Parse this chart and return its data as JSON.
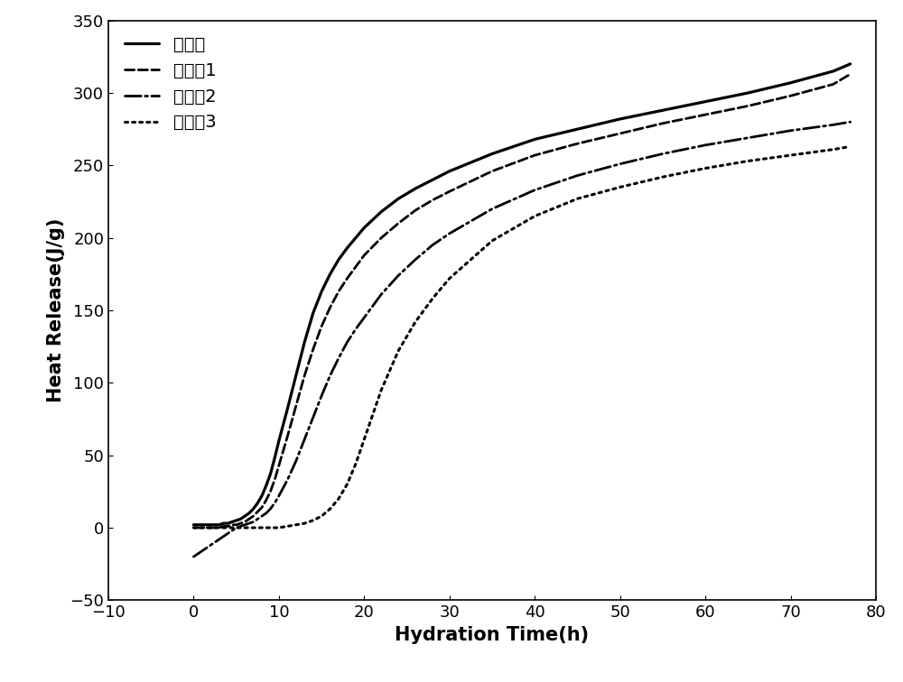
{
  "title": "",
  "xlabel": "Hydration Time（h）",
  "xlabel_plain": "Hydration Time(h)",
  "ylabel": "Heat Release(J/g)",
  "xlim": [
    -10,
    80
  ],
  "ylim": [
    -50,
    350
  ],
  "xticks": [
    -10,
    0,
    10,
    20,
    30,
    40,
    50,
    60,
    70,
    80
  ],
  "yticks": [
    -50,
    0,
    50,
    100,
    150,
    200,
    250,
    300,
    350
  ],
  "series": [
    {
      "label": "纯水泥",
      "linestyle": "solid",
      "linewidth": 2.3,
      "color": "#000000",
      "x": [
        0,
        0.5,
        1,
        1.5,
        2,
        2.5,
        3,
        3.5,
        4,
        4.5,
        5,
        5.5,
        6,
        6.5,
        7,
        7.5,
        8,
        8.5,
        9,
        9.5,
        10,
        11,
        12,
        13,
        14,
        15,
        16,
        17,
        18,
        19,
        20,
        22,
        24,
        26,
        28,
        30,
        35,
        40,
        45,
        50,
        55,
        60,
        65,
        70,
        75,
        77
      ],
      "y": [
        2,
        2,
        2,
        2,
        2,
        2,
        2,
        3,
        3,
        4,
        5,
        6,
        8,
        10,
        13,
        17,
        22,
        29,
        37,
        48,
        60,
        82,
        105,
        128,
        148,
        163,
        175,
        185,
        193,
        200,
        207,
        218,
        227,
        234,
        240,
        246,
        258,
        268,
        275,
        282,
        288,
        294,
        300,
        307,
        315,
        320
      ]
    },
    {
      "label": "实施例1",
      "linestyle": "dashed",
      "linewidth": 2.0,
      "color": "#000000",
      "x": [
        0,
        0.5,
        1,
        1.5,
        2,
        2.5,
        3,
        3.5,
        4,
        4.5,
        5,
        5.5,
        6,
        6.5,
        7,
        7.5,
        8,
        8.5,
        9,
        9.5,
        10,
        11,
        12,
        13,
        14,
        15,
        16,
        17,
        18,
        19,
        20,
        22,
        24,
        26,
        28,
        30,
        35,
        40,
        45,
        50,
        55,
        60,
        65,
        70,
        75,
        77
      ],
      "y": [
        0,
        0,
        0,
        0,
        0,
        0,
        0,
        1,
        1,
        2,
        2,
        3,
        4,
        6,
        8,
        11,
        14,
        19,
        25,
        33,
        43,
        63,
        84,
        105,
        123,
        139,
        152,
        163,
        172,
        180,
        188,
        200,
        210,
        219,
        226,
        232,
        246,
        257,
        265,
        272,
        279,
        285,
        291,
        298,
        306,
        313
      ]
    },
    {
      "label": "对比例2",
      "linestyle": "dashdot",
      "linewidth": 2.0,
      "color": "#000000",
      "x": [
        0,
        0.5,
        1,
        1.5,
        2,
        2.5,
        3,
        3.5,
        4,
        4.5,
        5,
        5.5,
        6,
        6.5,
        7,
        7.5,
        8,
        8.5,
        9,
        9.5,
        10,
        11,
        12,
        13,
        14,
        15,
        16,
        17,
        18,
        19,
        20,
        22,
        24,
        26,
        28,
        30,
        35,
        40,
        45,
        50,
        55,
        60,
        65,
        70,
        75,
        77
      ],
      "y": [
        -20,
        -18,
        -16,
        -14,
        -12,
        -10,
        -8,
        -6,
        -4,
        -2,
        0,
        1,
        2,
        3,
        4,
        6,
        8,
        10,
        13,
        17,
        22,
        33,
        46,
        61,
        76,
        91,
        105,
        117,
        128,
        137,
        145,
        161,
        174,
        185,
        195,
        203,
        220,
        233,
        243,
        251,
        258,
        264,
        269,
        274,
        278,
        280
      ]
    },
    {
      "label": "对比例3",
      "linestyle": "dotted",
      "linewidth": 2.2,
      "color": "#000000",
      "x": [
        0,
        1,
        2,
        3,
        4,
        5,
        6,
        7,
        8,
        9,
        10,
        11,
        12,
        13,
        14,
        15,
        16,
        17,
        18,
        19,
        20,
        22,
        24,
        26,
        28,
        30,
        35,
        40,
        45,
        50,
        55,
        60,
        65,
        70,
        75,
        77
      ],
      "y": [
        0,
        0,
        0,
        0,
        0,
        0,
        0,
        0,
        0,
        0,
        0,
        1,
        2,
        3,
        5,
        8,
        13,
        20,
        30,
        44,
        61,
        95,
        122,
        142,
        158,
        172,
        198,
        215,
        227,
        235,
        242,
        248,
        253,
        257,
        261,
        263
      ]
    }
  ],
  "legend_loc": "upper left",
  "legend_fontsize": 14,
  "axis_fontsize": 15,
  "tick_fontsize": 13,
  "background_color": "#ffffff",
  "font_color": "#000000"
}
